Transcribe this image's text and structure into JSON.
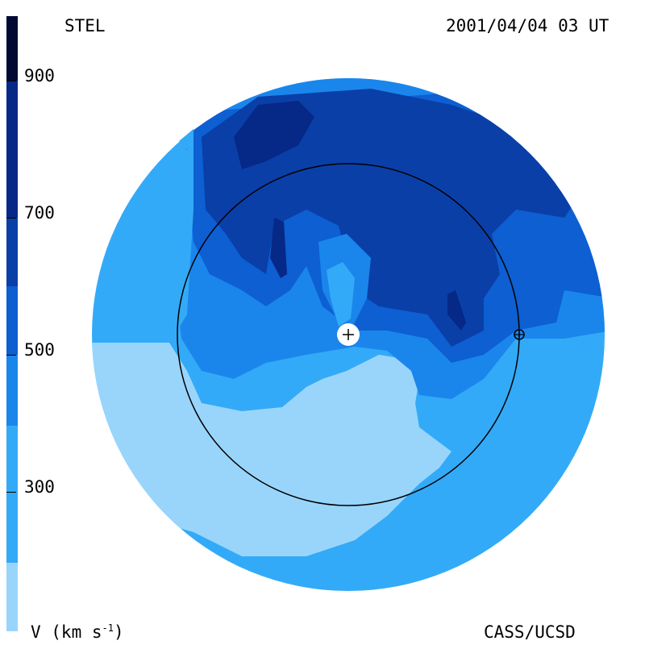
{
  "header": {
    "left_title": "STEL",
    "right_title": "2001/04/04 03 UT"
  },
  "footer": {
    "left_label_base": "V (km s",
    "left_label_exp": "-1",
    "left_label_close": ")",
    "right_label": "CASS/UCSD"
  },
  "colorbar": {
    "tick_labels": [
      "900",
      "700",
      "500",
      "300"
    ],
    "levels": [
      {
        "min": 200,
        "max": 300,
        "color": "#99d5fb"
      },
      {
        "min": 300,
        "max": 400,
        "color": "#33aaf7"
      },
      {
        "min": 400,
        "max": 500,
        "color": "#1a86ec"
      },
      {
        "min": 500,
        "max": 600,
        "color": "#0d5fd2"
      },
      {
        "min": 600,
        "max": 700,
        "color": "#0a3fa8"
      },
      {
        "min": 700,
        "max": 800,
        "color": "#062886"
      },
      {
        "min": 800,
        "max": 900,
        "color": "#041766"
      },
      {
        "min": 900,
        "max": 1000,
        "color": "#020a33"
      }
    ]
  },
  "map": {
    "sun_symbol": "+",
    "earth_symbol": "earth-orbit-marker",
    "orbit_radius_au": 1.0
  }
}
